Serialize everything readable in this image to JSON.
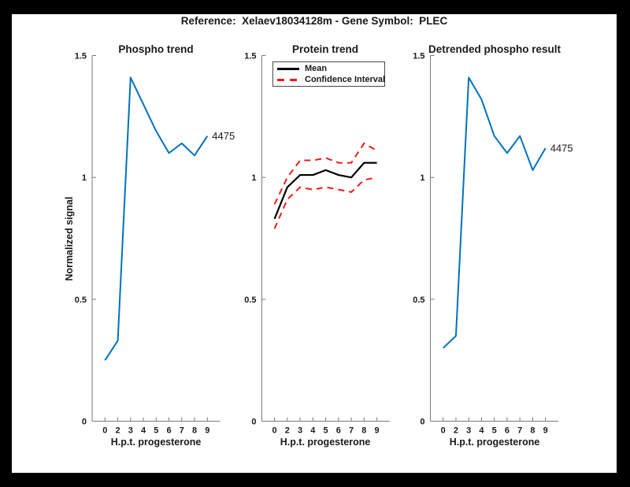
{
  "window": {
    "title": "Reference:  Xelaev18034128m - Gene Symbol:  PLEC"
  },
  "palette": {
    "blue": "#0072BD",
    "red": "#F21A1A",
    "black": "#000000",
    "axis_gray": "#7A7A7A",
    "text_dark": "#1A1A1A",
    "figure_bg": "#FFFFFF",
    "frame_bg": "#000000"
  },
  "axes_common": {
    "ylabel": "Normalized signal",
    "xlabel": "H.p.t. progesterone",
    "x_tick_labels": [
      "0",
      "2",
      "3",
      "4",
      "5",
      "6",
      "7",
      "8",
      "9"
    ],
    "y_tick_values": [
      0,
      0.5,
      1,
      1.5
    ],
    "y_tick_labels": [
      "0",
      "0.5",
      "1",
      "1.5"
    ],
    "ylim": [
      0,
      1.5
    ]
  },
  "chart_data": [
    {
      "type": "line",
      "title": "Phospho trend",
      "xlabel": "H.p.t. progesterone",
      "ylabel": "Normalized signal",
      "ylim": [
        0,
        1.5
      ],
      "categories": [
        "0",
        "2",
        "3",
        "4",
        "5",
        "6",
        "7",
        "8",
        "9"
      ],
      "grid": false,
      "series": [
        {
          "name": "phospho-trend",
          "color": "#0072BD",
          "style": "solid",
          "values": [
            0.25,
            0.33,
            1.41,
            1.3,
            1.19,
            1.1,
            1.14,
            1.09,
            1.17
          ],
          "end_label": "4475"
        }
      ]
    },
    {
      "type": "line",
      "title": "Protein trend",
      "xlabel": "H.p.t. progesterone",
      "ylim": [
        0,
        1.5
      ],
      "categories": [
        "0",
        "2",
        "3",
        "4",
        "5",
        "6",
        "7",
        "8",
        "9"
      ],
      "grid": false,
      "legend_position": "top-left",
      "legend": [
        {
          "label": "Mean",
          "color": "#000000",
          "style": "solid"
        },
        {
          "label": "Confidence Interval",
          "color": "#F21A1A",
          "style": "dashed"
        }
      ],
      "series": [
        {
          "name": "mean",
          "color": "#000000",
          "style": "solid",
          "values": [
            0.83,
            0.96,
            1.01,
            1.01,
            1.03,
            1.01,
            1.0,
            1.06,
            1.06
          ]
        },
        {
          "name": "confidence-upper",
          "color": "#F21A1A",
          "style": "dashed",
          "values": [
            0.89,
            1.0,
            1.07,
            1.07,
            1.08,
            1.06,
            1.06,
            1.14,
            1.11
          ]
        },
        {
          "name": "confidence-lower",
          "color": "#F21A1A",
          "style": "dashed",
          "values": [
            0.79,
            0.91,
            0.96,
            0.95,
            0.96,
            0.95,
            0.94,
            0.99,
            1.0
          ]
        }
      ]
    },
    {
      "type": "line",
      "title": "Detrended phospho result",
      "xlabel": "H.p.t. progesterone",
      "ylim": [
        0,
        1.5
      ],
      "categories": [
        "0",
        "2",
        "3",
        "4",
        "5",
        "6",
        "7",
        "8",
        "9"
      ],
      "grid": false,
      "series": [
        {
          "name": "detrended-phospho",
          "color": "#0072BD",
          "style": "solid",
          "values": [
            0.3,
            0.35,
            1.41,
            1.32,
            1.17,
            1.1,
            1.17,
            1.03,
            1.12
          ],
          "end_label": "4475"
        }
      ]
    }
  ]
}
